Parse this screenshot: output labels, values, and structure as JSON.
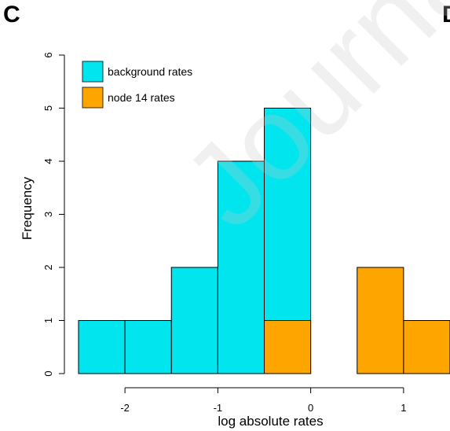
{
  "panel_label": "C",
  "next_panel_label": "D",
  "watermark_text": "Journal",
  "chart_data": {
    "type": "bar",
    "histogram": true,
    "xlabel": "log absolute rates",
    "ylabel": "Frequency",
    "xlim": [
      -2.5,
      1.5
    ],
    "ylim": [
      0,
      6
    ],
    "x_ticks": [
      -2,
      -1,
      0,
      1
    ],
    "x_tick_labels": [
      "-2",
      "-1",
      "0",
      "1"
    ],
    "y_ticks": [
      0,
      1,
      2,
      3,
      4,
      5,
      6
    ],
    "y_tick_labels": [
      "0",
      "1",
      "2",
      "3",
      "4",
      "5",
      "6"
    ],
    "bin_edges": [
      -2.5,
      -2.0,
      -1.5,
      -1.0,
      -0.5,
      0.0,
      0.5,
      1.0,
      1.5
    ],
    "series": [
      {
        "name": "background rates",
        "color": "#00e5ee",
        "values": [
          1,
          1,
          2,
          4,
          5,
          0,
          0,
          0
        ]
      },
      {
        "name": "node 14 rates",
        "color": "#ffa500",
        "values": [
          0,
          0,
          0,
          0,
          1,
          0,
          2,
          1
        ]
      }
    ],
    "legend_position": "top-left",
    "grid": false
  }
}
